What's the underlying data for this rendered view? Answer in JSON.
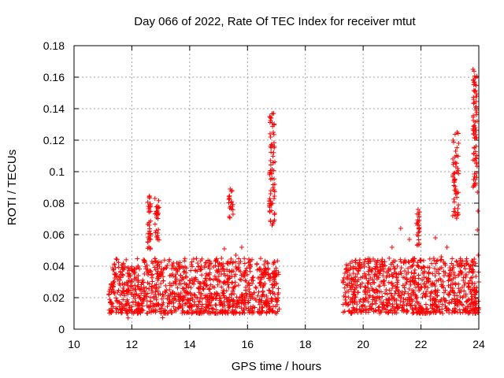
{
  "chart_data": {
    "type": "scatter",
    "title": "Day 066 of 2022, Rate Of TEC Index for receiver mtut",
    "xlabel": "GPS time / hours",
    "ylabel": "ROTI / TECUs",
    "xlim": [
      10,
      24
    ],
    "ylim": [
      0,
      0.18
    ],
    "xticks": [
      10,
      12,
      14,
      16,
      18,
      20,
      22,
      24
    ],
    "yticks": [
      0,
      0.02,
      0.04,
      0.06,
      0.08,
      0.1,
      0.12,
      0.14,
      0.16,
      0.18
    ],
    "xtick_labels": [
      "10",
      "12",
      "14",
      "16",
      "18",
      "20",
      "22",
      "24"
    ],
    "ytick_labels": [
      "0",
      "0.02",
      "0.04",
      "0.06",
      "0.08",
      "0.1",
      "0.12",
      "0.14",
      "0.16",
      "0.18"
    ],
    "grid": true,
    "marker": "+",
    "color": "#ff0000",
    "series": [
      {
        "name": "mtut",
        "segments": [
          {
            "x_start": 11.2,
            "x_end": 17.1,
            "y_base_range": [
              0.01,
              0.045
            ],
            "note": "dense cloud"
          },
          {
            "x_start": 19.3,
            "x_end": 24.0,
            "y_base_range": [
              0.01,
              0.045
            ],
            "note": "dense cloud"
          }
        ],
        "features": [
          {
            "x": [
              11.3,
              17.0
            ],
            "y_min": 0.007,
            "y_max": 0.045
          },
          {
            "x": [
              12.55,
              12.65
            ],
            "y_min": 0.05,
            "y_max": 0.085
          },
          {
            "x": [
              12.8,
              12.95
            ],
            "y_min": 0.055,
            "y_max": 0.083
          },
          {
            "x": [
              15.35,
              15.5
            ],
            "y_min": 0.07,
            "y_max": 0.089
          },
          {
            "x": [
              16.75,
              16.95
            ],
            "y_min": 0.066,
            "y_max": 0.137
          },
          {
            "x": [
              21.85,
              21.95
            ],
            "y_min": 0.05,
            "y_max": 0.076
          },
          {
            "x": [
              23.1,
              23.3
            ],
            "y_min": 0.07,
            "y_max": 0.125
          },
          {
            "x": [
              23.8,
              23.95
            ],
            "y_min": 0.09,
            "y_max": 0.165
          }
        ],
        "points": [
          [
            11.3,
            0.024
          ],
          [
            11.4,
            0.035
          ],
          [
            11.5,
            0.017
          ],
          [
            11.6,
            0.028
          ],
          [
            11.7,
            0.041
          ],
          [
            11.8,
            0.015
          ],
          [
            11.9,
            0.031
          ],
          [
            12.0,
            0.022
          ],
          [
            12.1,
            0.038
          ],
          [
            12.2,
            0.027
          ],
          [
            12.3,
            0.019
          ],
          [
            12.4,
            0.044
          ],
          [
            12.5,
            0.026
          ],
          [
            12.6,
            0.084
          ],
          [
            12.6,
            0.075
          ],
          [
            12.6,
            0.066
          ],
          [
            12.7,
            0.034
          ],
          [
            12.8,
            0.083
          ],
          [
            12.85,
            0.071
          ],
          [
            12.9,
            0.058
          ],
          [
            13.0,
            0.029
          ],
          [
            13.1,
            0.021
          ],
          [
            13.2,
            0.039
          ],
          [
            13.3,
            0.025
          ],
          [
            13.4,
            0.018
          ],
          [
            13.5,
            0.033
          ],
          [
            13.6,
            0.042
          ],
          [
            13.7,
            0.023
          ],
          [
            13.8,
            0.036
          ],
          [
            13.9,
            0.028
          ],
          [
            14.0,
            0.031
          ],
          [
            14.1,
            0.019
          ],
          [
            14.2,
            0.037
          ],
          [
            14.3,
            0.026
          ],
          [
            14.4,
            0.022
          ],
          [
            14.5,
            0.029
          ],
          [
            14.6,
            0.034
          ],
          [
            14.7,
            0.017
          ],
          [
            14.8,
            0.027
          ],
          [
            14.9,
            0.032
          ],
          [
            15.0,
            0.038
          ],
          [
            15.1,
            0.045
          ],
          [
            15.2,
            0.051
          ],
          [
            15.3,
            0.042
          ],
          [
            15.4,
            0.089
          ],
          [
            15.45,
            0.081
          ],
          [
            15.5,
            0.073
          ],
          [
            15.6,
            0.047
          ],
          [
            15.7,
            0.039
          ],
          [
            15.8,
            0.052
          ],
          [
            15.9,
            0.034
          ],
          [
            16.0,
            0.028
          ],
          [
            16.1,
            0.041
          ],
          [
            16.2,
            0.033
          ],
          [
            16.3,
            0.026
          ],
          [
            16.4,
            0.038
          ],
          [
            16.5,
            0.021
          ],
          [
            16.6,
            0.029
          ],
          [
            16.7,
            0.019
          ],
          [
            16.8,
            0.122
          ],
          [
            16.85,
            0.131
          ],
          [
            16.9,
            0.137
          ],
          [
            16.8,
            0.086
          ],
          [
            16.82,
            0.079
          ],
          [
            16.85,
            0.066
          ],
          [
            16.8,
            0.107
          ],
          [
            17.0,
            0.018
          ],
          [
            17.05,
            0.022
          ],
          [
            19.3,
            0.031
          ],
          [
            19.4,
            0.038
          ],
          [
            19.5,
            0.024
          ],
          [
            19.6,
            0.029
          ],
          [
            19.7,
            0.019
          ],
          [
            19.8,
            0.035
          ],
          [
            19.9,
            0.027
          ],
          [
            20.0,
            0.012
          ],
          [
            20.1,
            0.022
          ],
          [
            20.2,
            0.031
          ],
          [
            20.3,
            0.026
          ],
          [
            20.4,
            0.018
          ],
          [
            20.5,
            0.024
          ],
          [
            20.6,
            0.038
          ],
          [
            20.7,
            0.029
          ],
          [
            20.8,
            0.033
          ],
          [
            20.9,
            0.045
          ],
          [
            21.0,
            0.052
          ],
          [
            21.1,
            0.038
          ],
          [
            21.2,
            0.031
          ],
          [
            21.3,
            0.064
          ],
          [
            21.4,
            0.042
          ],
          [
            21.5,
            0.035
          ],
          [
            21.6,
            0.057
          ],
          [
            21.7,
            0.031
          ],
          [
            21.8,
            0.022
          ],
          [
            21.9,
            0.076
          ],
          [
            21.9,
            0.068
          ],
          [
            22.0,
            0.027
          ],
          [
            22.1,
            0.033
          ],
          [
            22.2,
            0.024
          ],
          [
            22.3,
            0.039
          ],
          [
            22.4,
            0.029
          ],
          [
            22.5,
            0.058
          ],
          [
            22.6,
            0.031
          ],
          [
            22.7,
            0.046
          ],
          [
            22.8,
            0.034
          ],
          [
            22.9,
            0.052
          ],
          [
            23.0,
            0.039
          ],
          [
            23.1,
            0.072
          ],
          [
            23.15,
            0.094
          ],
          [
            23.2,
            0.113
          ],
          [
            23.25,
            0.125
          ],
          [
            23.3,
            0.118
          ],
          [
            23.4,
            0.035
          ],
          [
            23.5,
            0.028
          ],
          [
            23.6,
            0.042
          ],
          [
            23.7,
            0.025
          ],
          [
            23.8,
            0.165
          ],
          [
            23.85,
            0.157
          ],
          [
            23.82,
            0.146
          ],
          [
            23.9,
            0.139
          ],
          [
            23.88,
            0.128
          ],
          [
            23.92,
            0.099
          ],
          [
            23.95,
            0.087
          ],
          [
            23.97,
            0.075
          ],
          [
            23.95,
            0.063
          ],
          [
            23.98,
            0.047
          ],
          [
            24.0,
            0.03
          ]
        ]
      }
    ]
  }
}
